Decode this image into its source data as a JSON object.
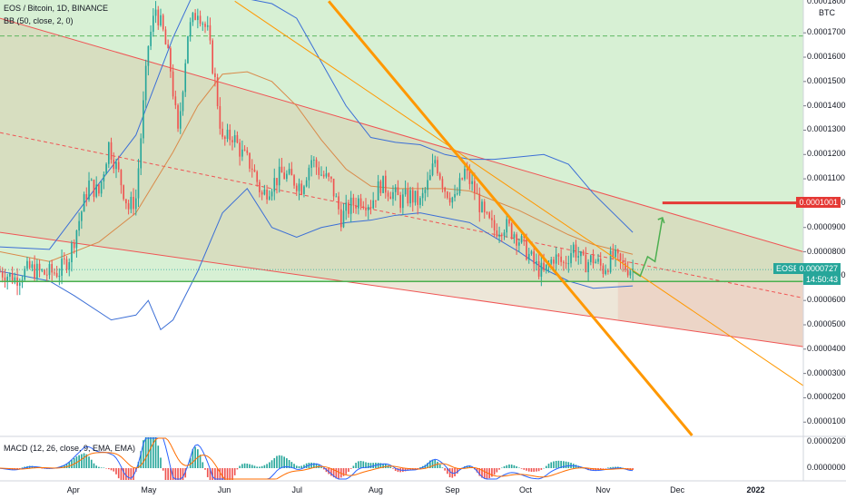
{
  "header": {
    "title": "EOS / Bitcoin, 1D, BINANCE",
    "bb_label": "BB (50, close, 2, 0)",
    "macd_label": "MACD (12, 26, close, 9, EMA, EMA)"
  },
  "symbol_tag": "EOSBTC",
  "price_tag": {
    "value": "0.0000727",
    "countdown": "14:50:43"
  },
  "level_tag": "0.0001001",
  "colors": {
    "candle_up": "#26a69a",
    "candle_down": "#ef5350",
    "channel_line": "#f05454",
    "channel_fill": "#d8c8a8",
    "profit_zone": "#d7f0d4",
    "loss_zone": "#fde0e0",
    "support": "#4caf50",
    "bollinger": "#3c6fd6",
    "basis": "#d98a4a",
    "trendline": "#ff9800",
    "target": "#e53935",
    "projection": "#4caf50",
    "price_tag": "#26a69a"
  },
  "chart_data": {
    "type": "candlestick",
    "y_unit": "BTC",
    "y_ticks": [
      "0.0001700",
      "0.0001600",
      "0.0001500",
      "0.0001400",
      "0.0001300",
      "0.0001200",
      "0.0001100",
      "0.0001000",
      "0.0000900",
      "0.0000800",
      "0.0000700",
      "0.0000600",
      "0.0000500",
      "0.0000400",
      "0.0000300",
      "0.0000200",
      "0.0000100"
    ],
    "y_top_cut_label": "0.0001800",
    "macd_ticks": [
      "0.0000200",
      "0.0000000"
    ],
    "x_labels": [
      "Apr",
      "May",
      "Jun",
      "Jul",
      "Aug",
      "Sep",
      "Oct",
      "Nov",
      "Dec",
      "2022"
    ],
    "x_label_days": [
      30,
      60,
      91,
      121,
      152,
      183,
      213,
      244,
      274,
      305
    ],
    "ylim": [
      4.5e-06,
      0.0001835
    ],
    "xlim": [
      0,
      325
    ],
    "last_price": 7.27e-05,
    "target_level": 0.0001001,
    "close_path": [
      [
        0,
        7.2e-05
      ],
      [
        6,
        6.9e-05
      ],
      [
        12,
        7.3e-05
      ],
      [
        18,
        7.1e-05
      ],
      [
        24,
        7.2e-05
      ],
      [
        28,
        7.8e-05
      ],
      [
        32,
        9.3e-05
      ],
      [
        36,
        0.000108
      ],
      [
        40,
        0.000104
      ],
      [
        44,
        0.000124
      ],
      [
        48,
        0.000112
      ],
      [
        52,
        9.8e-05
      ],
      [
        55,
        0.000102
      ],
      [
        58,
        0.00014
      ],
      [
        60,
        0.000165
      ],
      [
        63,
        0.00018
      ],
      [
        66,
        0.00017
      ],
      [
        69,
        0.000155
      ],
      [
        72,
        0.000128
      ],
      [
        76,
        0.00017
      ],
      [
        80,
        0.00018
      ],
      [
        84,
        0.00017
      ],
      [
        87,
        0.00015
      ],
      [
        90,
        0.000125
      ],
      [
        94,
        0.000128
      ],
      [
        98,
        0.00012
      ],
      [
        102,
        0.000115
      ],
      [
        106,
        0.000103
      ],
      [
        110,
        0.000108
      ],
      [
        114,
        0.000112
      ],
      [
        118,
        0.00011
      ],
      [
        122,
        0.000107
      ],
      [
        126,
        0.000118
      ],
      [
        130,
        0.000112
      ],
      [
        134,
        0.000108
      ],
      [
        138,
        9.4e-05
      ],
      [
        142,
        9.9e-05
      ],
      [
        146,
        0.000102
      ],
      [
        150,
        0.0001
      ],
      [
        154,
        0.000108
      ],
      [
        158,
        0.000105
      ],
      [
        162,
        0.000101
      ],
      [
        166,
        0.000103
      ],
      [
        170,
        0.0001
      ],
      [
        174,
        0.00011
      ],
      [
        176,
        0.000118
      ],
      [
        180,
        0.000106
      ],
      [
        184,
        0.000101
      ],
      [
        188,
        0.000113
      ],
      [
        192,
        0.000105
      ],
      [
        196,
        9.4e-05
      ],
      [
        200,
        8.9e-05
      ],
      [
        204,
        9.1e-05
      ],
      [
        208,
        8.8e-05
      ],
      [
        212,
        8.2e-05
      ],
      [
        216,
        7.5e-05
      ],
      [
        220,
        7.1e-05
      ],
      [
        224,
        7.8e-05
      ],
      [
        228,
        7.5e-05
      ],
      [
        232,
        8.2e-05
      ],
      [
        236,
        7.5e-05
      ],
      [
        240,
        7.7e-05
      ],
      [
        244,
        7.3e-05
      ],
      [
        248,
        7.8e-05
      ],
      [
        252,
        7.4e-05
      ],
      [
        256,
        7.3e-05
      ]
    ],
    "bollinger": {
      "basis": [
        [
          0,
          8e-05
        ],
        [
          20,
          7.6e-05
        ],
        [
          40,
          8.4e-05
        ],
        [
          55,
          9.6e-05
        ],
        [
          70,
          0.000121
        ],
        [
          80,
          0.00014
        ],
        [
          90,
          0.000153
        ],
        [
          100,
          0.000154
        ],
        [
          110,
          0.00015
        ],
        [
          120,
          0.00014
        ],
        [
          130,
          0.000126
        ],
        [
          140,
          0.000114
        ],
        [
          150,
          0.000107
        ],
        [
          160,
          0.000106
        ],
        [
          170,
          0.000106
        ],
        [
          180,
          0.000106
        ],
        [
          190,
          0.000105
        ],
        [
          200,
          0.000101
        ],
        [
          210,
          9.7e-05
        ],
        [
          220,
          9.2e-05
        ],
        [
          230,
          8.7e-05
        ],
        [
          240,
          8.3e-05
        ],
        [
          256,
          7.9e-05
        ]
      ],
      "upper": [
        [
          0,
          8.2e-05
        ],
        [
          20,
          8.1e-05
        ],
        [
          40,
          0.000108
        ],
        [
          55,
          0.000128
        ],
        [
          70,
          0.000168
        ],
        [
          80,
          0.00019
        ],
        [
          95,
          0.000185
        ],
        [
          110,
          0.000182
        ],
        [
          120,
          0.000176
        ],
        [
          130,
          0.000158
        ],
        [
          140,
          0.00014
        ],
        [
          150,
          0.000127
        ],
        [
          160,
          0.000125
        ],
        [
          170,
          0.000124
        ],
        [
          180,
          0.00012
        ],
        [
          190,
          0.000118
        ],
        [
          200,
          0.000118
        ],
        [
          210,
          0.000119
        ],
        [
          220,
          0.00012
        ],
        [
          230,
          0.000116
        ],
        [
          240,
          0.000104
        ],
        [
          256,
          8.8e-05
        ]
      ],
      "lower": [
        [
          0,
          7.2e-05
        ],
        [
          20,
          6.8e-05
        ],
        [
          30,
          6.2e-05
        ],
        [
          45,
          5.2e-05
        ],
        [
          55,
          5.4e-05
        ],
        [
          60,
          6e-05
        ],
        [
          65,
          4.8e-05
        ],
        [
          70,
          5.2e-05
        ],
        [
          80,
          7.2e-05
        ],
        [
          90,
          9.6e-05
        ],
        [
          100,
          0.000106
        ],
        [
          110,
          9e-05
        ],
        [
          120,
          8.6e-05
        ],
        [
          130,
          9e-05
        ],
        [
          140,
          9.2e-05
        ],
        [
          150,
          9.3e-05
        ],
        [
          160,
          9.5e-05
        ],
        [
          170,
          9.6e-05
        ],
        [
          180,
          9.4e-05
        ],
        [
          190,
          9.2e-05
        ],
        [
          200,
          8.6e-05
        ],
        [
          210,
          8e-05
        ],
        [
          220,
          7.3e-05
        ],
        [
          230,
          6.8e-05
        ],
        [
          240,
          6.5e-05
        ],
        [
          256,
          6.6e-05
        ]
      ]
    },
    "channel": {
      "upper": [
        [
          0,
          0.000176
        ],
        [
          325,
          8e-05
        ]
      ],
      "middle": [
        [
          0,
          0.000129
        ],
        [
          325,
          6.1e-05
        ]
      ],
      "lower": [
        [
          0,
          8.8e-05
        ],
        [
          325,
          4.1e-05
        ]
      ]
    },
    "support_level": 6.78e-05,
    "dashed_level": 0.0001687,
    "trendlines": {
      "steep": [
        [
          133,
          0.000183
        ],
        [
          280,
          4.5e-06
        ]
      ],
      "thin": [
        [
          95,
          0.000183
        ],
        [
          325,
          2.5e-05
        ]
      ]
    },
    "projection": [
      [
        256,
        7.2e-05
      ],
      [
        259,
        7e-05
      ],
      [
        262,
        7.8e-05
      ],
      [
        265,
        7.6e-05
      ],
      [
        268,
        9.4e-05
      ]
    ],
    "target_segment": [
      [
        268,
        0.0001001
      ],
      [
        325,
        0.0001001
      ]
    ]
  }
}
